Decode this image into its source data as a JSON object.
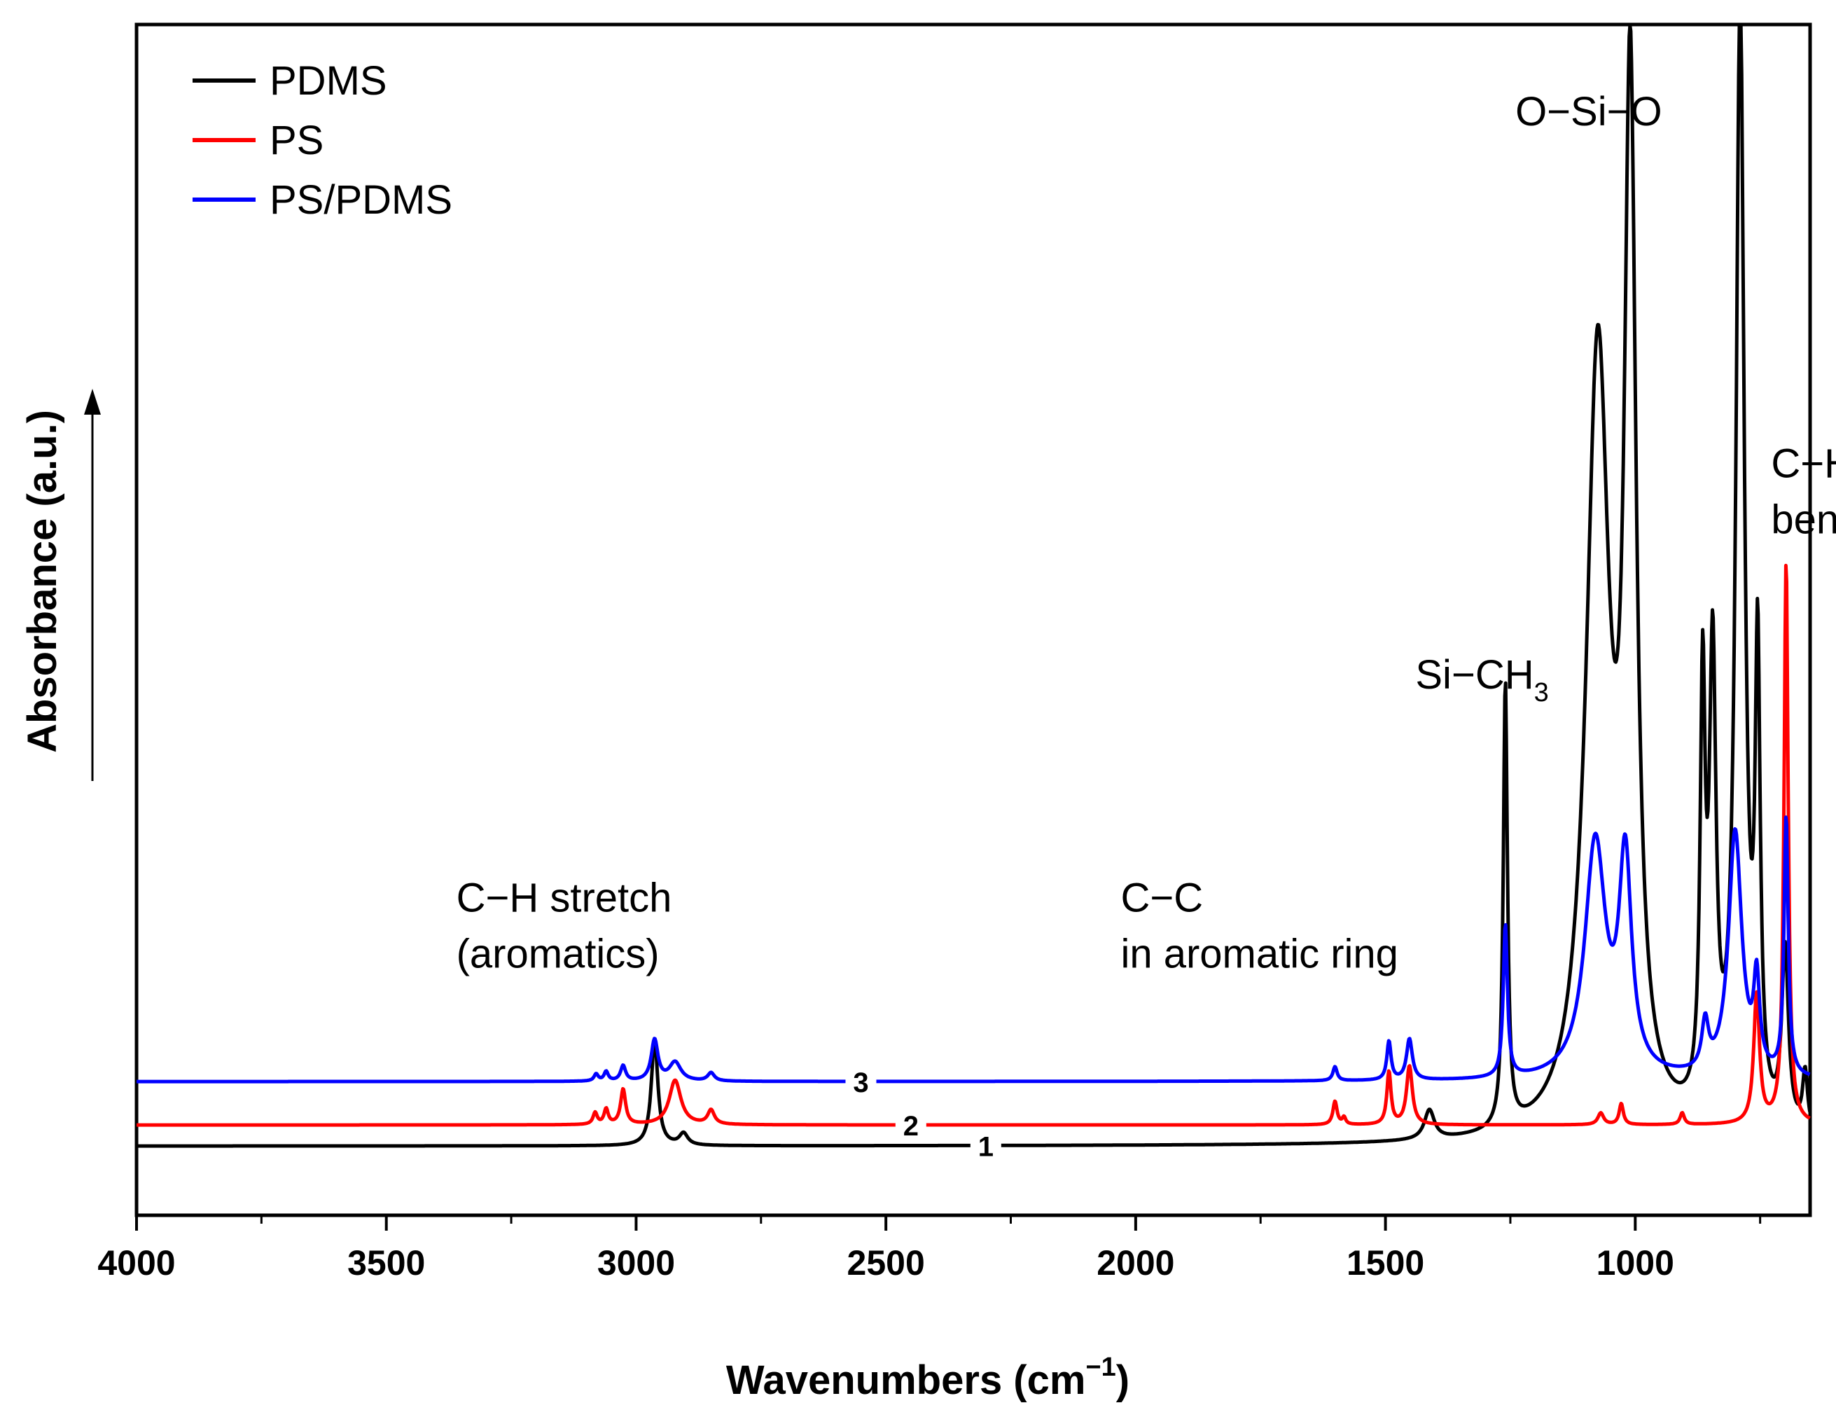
{
  "chart_data": {
    "type": "line",
    "title": "",
    "xlabel": "Wavenumbers (cm",
    "xlabel_sup": "−1",
    "xlabel_close": ")",
    "ylabel": "Absorbance (a.u.)",
    "xlim": [
      4000,
      650
    ],
    "ylim": [
      0,
      10
    ],
    "xticks": [
      4000,
      3500,
      3000,
      2500,
      2000,
      1500,
      1000
    ],
    "xticks_minor": [
      3750,
      3250,
      2750,
      2250,
      1750,
      1250,
      750
    ],
    "grid": false,
    "legend_position": "top-left",
    "legend": [
      "PDMS",
      "PS",
      "PS/PDMS"
    ],
    "series": [
      {
        "name": "PDMS",
        "curve_label": "1",
        "label_at": 2300,
        "color": "#000000",
        "baseline": 0.5,
        "peaks": [
          {
            "x": 2963,
            "h": 0.9,
            "w": 8
          },
          {
            "x": 2905,
            "h": 0.1,
            "w": 10
          },
          {
            "x": 1412,
            "h": 0.25,
            "w": 12
          },
          {
            "x": 1260,
            "h": 3.8,
            "w": 5
          },
          {
            "x": 1075,
            "h": 6.6,
            "w": 28
          },
          {
            "x": 1010,
            "h": 8.5,
            "w": 14
          },
          {
            "x": 865,
            "h": 3.5,
            "w": 6
          },
          {
            "x": 845,
            "h": 3.8,
            "w": 8
          },
          {
            "x": 790,
            "h": 9.6,
            "w": 10
          },
          {
            "x": 755,
            "h": 3.8,
            "w": 6
          },
          {
            "x": 700,
            "h": 1.5,
            "w": 8
          },
          {
            "x": 660,
            "h": 0.5,
            "w": 6
          }
        ]
      },
      {
        "name": "PS",
        "curve_label": "2",
        "label_at": 2450,
        "color": "#ff0000",
        "baseline": 0.68,
        "peaks": [
          {
            "x": 3082,
            "h": 0.1,
            "w": 5
          },
          {
            "x": 3060,
            "h": 0.13,
            "w": 5
          },
          {
            "x": 3026,
            "h": 0.3,
            "w": 6
          },
          {
            "x": 2922,
            "h": 0.38,
            "w": 14
          },
          {
            "x": 2850,
            "h": 0.12,
            "w": 8
          },
          {
            "x": 1601,
            "h": 0.2,
            "w": 5
          },
          {
            "x": 1583,
            "h": 0.06,
            "w": 4
          },
          {
            "x": 1493,
            "h": 0.45,
            "w": 5
          },
          {
            "x": 1452,
            "h": 0.5,
            "w": 7
          },
          {
            "x": 1069,
            "h": 0.1,
            "w": 7
          },
          {
            "x": 1028,
            "h": 0.18,
            "w": 5
          },
          {
            "x": 906,
            "h": 0.1,
            "w": 5
          },
          {
            "x": 757,
            "h": 1.1,
            "w": 7
          },
          {
            "x": 698,
            "h": 4.8,
            "w": 5
          }
        ]
      },
      {
        "name": "PS/PDMS",
        "curve_label": "3",
        "label_at": 2550,
        "color": "#0000ff",
        "baseline": 1.05,
        "peaks": [
          {
            "x": 3080,
            "h": 0.06,
            "w": 5
          },
          {
            "x": 3060,
            "h": 0.08,
            "w": 5
          },
          {
            "x": 3026,
            "h": 0.13,
            "w": 6
          },
          {
            "x": 2963,
            "h": 0.35,
            "w": 8
          },
          {
            "x": 2922,
            "h": 0.16,
            "w": 14
          },
          {
            "x": 2850,
            "h": 0.07,
            "w": 8
          },
          {
            "x": 1601,
            "h": 0.12,
            "w": 5
          },
          {
            "x": 1493,
            "h": 0.33,
            "w": 5
          },
          {
            "x": 1452,
            "h": 0.35,
            "w": 7
          },
          {
            "x": 1260,
            "h": 1.3,
            "w": 5
          },
          {
            "x": 1080,
            "h": 2.0,
            "w": 25
          },
          {
            "x": 1020,
            "h": 1.8,
            "w": 15
          },
          {
            "x": 860,
            "h": 0.4,
            "w": 8
          },
          {
            "x": 800,
            "h": 2.1,
            "w": 16
          },
          {
            "x": 757,
            "h": 0.75,
            "w": 7
          },
          {
            "x": 698,
            "h": 2.2,
            "w": 5
          }
        ]
      }
    ],
    "annotations": [
      {
        "id": "ch-stretch",
        "lines": [
          "C−H stretch",
          "(aromatics)"
        ],
        "x": 3360,
        "level": 2.5
      },
      {
        "id": "cc-ring",
        "lines": [
          "C−C",
          "in aromatic ring"
        ],
        "x": 2030,
        "level": 2.5
      },
      {
        "id": "si-ch3",
        "text": "Si−CH",
        "sub": "3",
        "x": 1440,
        "level": 4.4
      },
      {
        "id": "o-si-o",
        "text": "O−Si−O",
        "x": 1240,
        "level": 9.2
      },
      {
        "id": "ch-bend",
        "lines": [
          "C−H",
          "bend"
        ],
        "x": 728,
        "level": 6.2
      }
    ]
  }
}
